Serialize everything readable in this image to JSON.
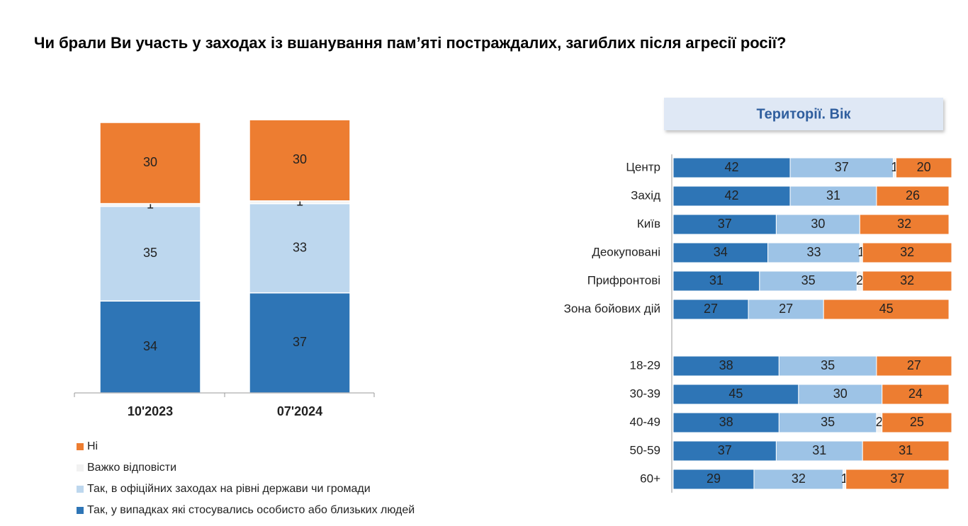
{
  "title": "Чи брали Ви участь у заходах із вшанування пам’яті постраждалих, загиблих після агресії росії?",
  "chart_data": [
    {
      "type": "bar",
      "stacked": true,
      "categories": [
        "10'2023",
        "07'2024"
      ],
      "ylim": [
        0,
        100
      ],
      "series": [
        {
          "name": "Так, у випадках які стосувались особисто або близьких людей",
          "color": "#2e75b6",
          "values": [
            34,
            37
          ]
        },
        {
          "name": "Так, в офіційних заходах на рівні держави чи громади",
          "color": "#bdd7ee",
          "values": [
            35,
            33
          ]
        },
        {
          "name": "Важко відповісти",
          "color": "#f2f2f2",
          "values": [
            1,
            1
          ]
        },
        {
          "name": "Ні",
          "color": "#ed7d31",
          "values": [
            30,
            30
          ]
        }
      ]
    },
    {
      "type": "barh",
      "stacked": true,
      "title": "Території. Вік",
      "categories": [
        "Центр",
        "Захід",
        "Київ",
        "Деокуповані",
        "Прифронтові",
        "Зона бойових дій",
        null,
        "18-29",
        "30-39",
        "40-49",
        "50-59",
        "60+"
      ],
      "xlim": [
        0,
        100
      ],
      "series": [
        {
          "color": "#2e75b6",
          "values": [
            42,
            42,
            37,
            34,
            31,
            27,
            null,
            38,
            45,
            38,
            37,
            29
          ]
        },
        {
          "color": "#9dc3e6",
          "values": [
            37,
            31,
            30,
            33,
            35,
            27,
            null,
            35,
            30,
            35,
            31,
            32
          ]
        },
        {
          "color": "#f2f2f2",
          "values": [
            1,
            null,
            null,
            1,
            2,
            null,
            null,
            null,
            null,
            2,
            null,
            1
          ]
        },
        {
          "color": "#ed7d31",
          "values": [
            20,
            26,
            32,
            32,
            32,
            45,
            null,
            27,
            24,
            25,
            31,
            37
          ]
        }
      ]
    }
  ]
}
